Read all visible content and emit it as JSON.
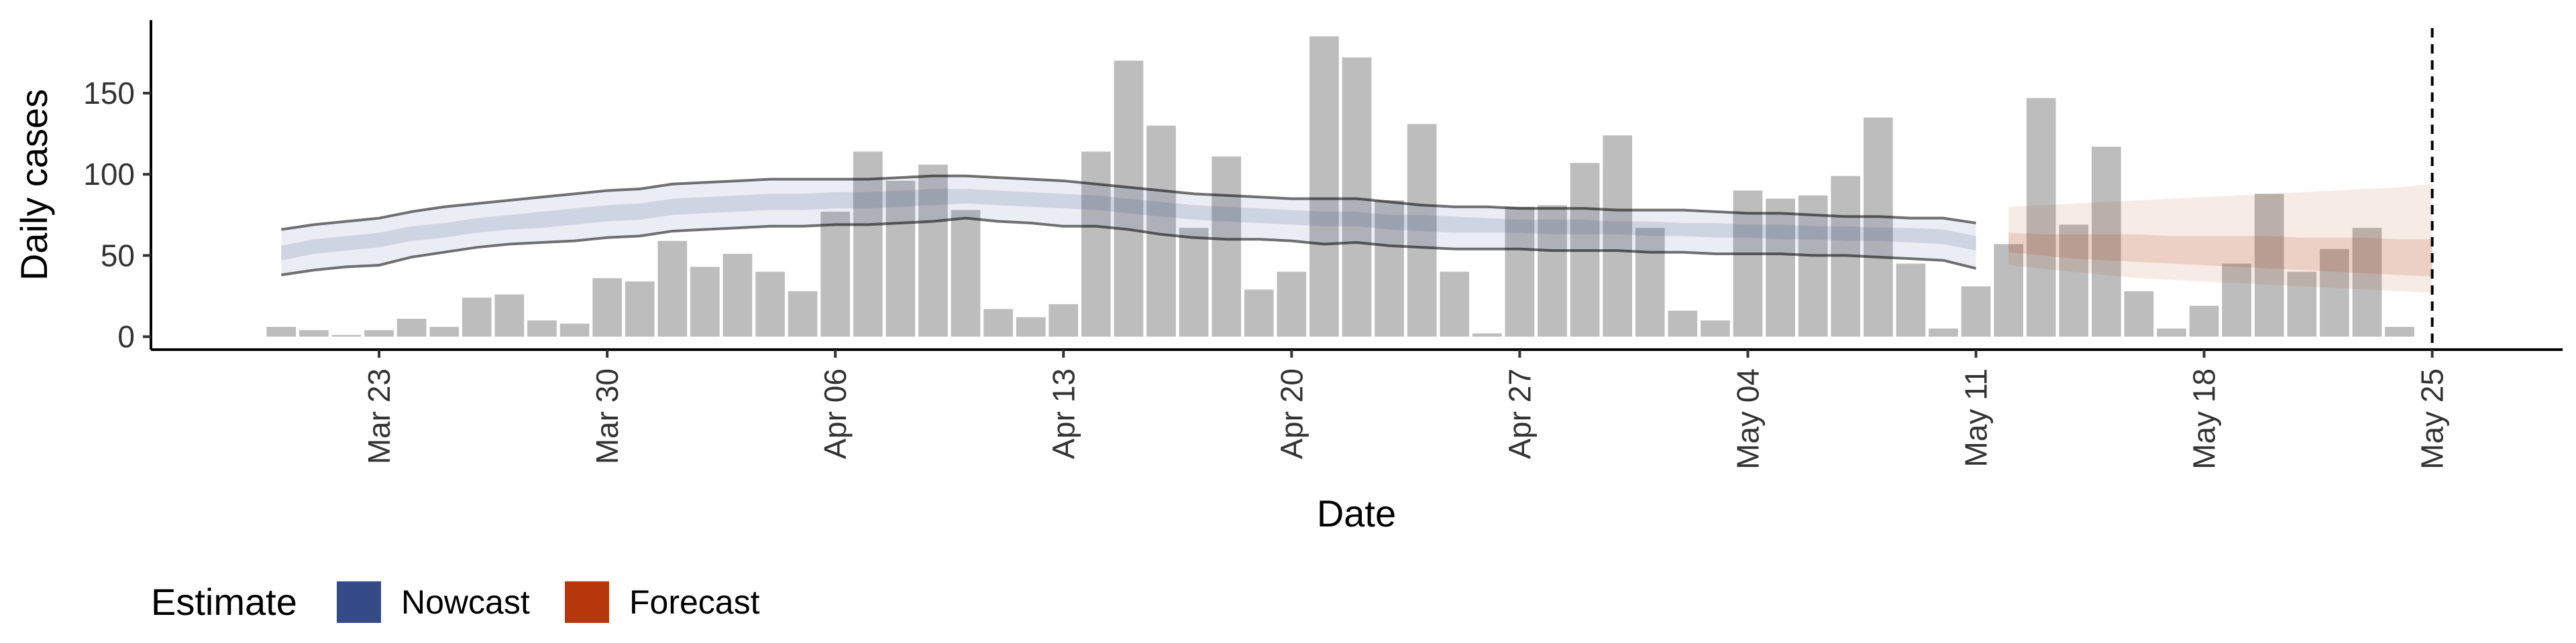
{
  "chart_data": {
    "type": "bar",
    "xlabel": "Date",
    "ylabel": "Daily cases",
    "ylim": [
      -8,
      195
    ],
    "y_ticks": [
      0,
      50,
      100,
      150
    ],
    "x_ticks": [
      "2020-03-23",
      "2020-03-30",
      "2020-04-06",
      "2020-04-13",
      "2020-04-20",
      "2020-04-27",
      "2020-05-04",
      "2020-05-11",
      "2020-05-18",
      "2020-05-25"
    ],
    "x_tick_labels": [
      "Mar 23",
      "Mar 30",
      "Apr 06",
      "Apr 13",
      "Apr 20",
      "Apr 27",
      "May 04",
      "May 11",
      "May 18",
      "May 25"
    ],
    "xlim": [
      "2020-03-16",
      "2020-05-29"
    ],
    "vline_date": "2020-05-25",
    "grid": false,
    "legend": {
      "title": "Estimate",
      "position": "bottom-left",
      "entries": [
        {
          "name": "Nowcast",
          "color": "#344b88"
        },
        {
          "name": "Forecast",
          "color": "#b5370b"
        }
      ]
    },
    "bar_color": "#bdbdbd",
    "cases": {
      "dates": [
        "2020-03-20",
        "2020-03-21",
        "2020-03-22",
        "2020-03-23",
        "2020-03-24",
        "2020-03-25",
        "2020-03-26",
        "2020-03-27",
        "2020-03-28",
        "2020-03-29",
        "2020-03-30",
        "2020-03-31",
        "2020-04-01",
        "2020-04-02",
        "2020-04-03",
        "2020-04-04",
        "2020-04-05",
        "2020-04-06",
        "2020-04-07",
        "2020-04-08",
        "2020-04-09",
        "2020-04-10",
        "2020-04-11",
        "2020-04-12",
        "2020-04-13",
        "2020-04-14",
        "2020-04-15",
        "2020-04-16",
        "2020-04-17",
        "2020-04-18",
        "2020-04-19",
        "2020-04-20",
        "2020-04-21",
        "2020-04-22",
        "2020-04-23",
        "2020-04-24",
        "2020-04-25",
        "2020-04-26",
        "2020-04-27",
        "2020-04-28",
        "2020-04-29",
        "2020-04-30",
        "2020-05-01",
        "2020-05-02",
        "2020-05-03",
        "2020-05-04",
        "2020-05-05",
        "2020-05-06",
        "2020-05-07",
        "2020-05-08",
        "2020-05-09",
        "2020-05-10",
        "2020-05-11",
        "2020-05-12",
        "2020-05-13",
        "2020-05-14",
        "2020-05-15",
        "2020-05-16",
        "2020-05-17",
        "2020-05-18",
        "2020-05-19",
        "2020-05-20",
        "2020-05-21",
        "2020-05-22",
        "2020-05-23",
        "2020-05-24",
        "2020-05-25"
      ],
      "values": [
        6,
        4,
        1,
        4,
        11,
        6,
        24,
        26,
        10,
        8,
        36,
        34,
        59,
        43,
        51,
        40,
        28,
        77,
        114,
        96,
        106,
        78,
        17,
        12,
        20,
        114,
        170,
        130,
        67,
        111,
        29,
        40,
        185,
        172,
        84,
        131,
        40,
        2,
        80,
        81,
        107,
        124,
        67,
        16,
        10,
        90,
        85,
        87,
        99,
        135,
        45,
        5,
        31,
        57,
        147,
        69,
        117,
        28,
        5,
        19,
        45,
        88,
        40,
        54,
        67,
        6,
        0
      ]
    },
    "nowcast": {
      "dates": [
        "2020-03-20",
        "2020-03-21",
        "2020-03-22",
        "2020-03-23",
        "2020-03-24",
        "2020-03-25",
        "2020-03-26",
        "2020-03-27",
        "2020-03-28",
        "2020-03-29",
        "2020-03-30",
        "2020-03-31",
        "2020-04-01",
        "2020-04-02",
        "2020-04-03",
        "2020-04-04",
        "2020-04-05",
        "2020-04-06",
        "2020-04-07",
        "2020-04-08",
        "2020-04-09",
        "2020-04-10",
        "2020-04-11",
        "2020-04-12",
        "2020-04-13",
        "2020-04-14",
        "2020-04-15",
        "2020-04-16",
        "2020-04-17",
        "2020-04-18",
        "2020-04-19",
        "2020-04-20",
        "2020-04-21",
        "2020-04-22",
        "2020-04-23",
        "2020-04-24",
        "2020-04-25",
        "2020-04-26",
        "2020-04-27",
        "2020-04-28",
        "2020-04-29",
        "2020-04-30",
        "2020-05-01",
        "2020-05-02",
        "2020-05-03",
        "2020-05-04",
        "2020-05-05",
        "2020-05-06",
        "2020-05-07",
        "2020-05-08",
        "2020-05-09",
        "2020-05-10",
        "2020-05-11"
      ],
      "lower90": [
        38,
        41,
        43,
        44,
        49,
        52,
        55,
        57,
        58,
        59,
        61,
        62,
        65,
        66,
        67,
        68,
        68,
        69,
        69,
        70,
        71,
        73,
        71,
        70,
        68,
        68,
        66,
        63,
        61,
        60,
        60,
        59,
        57,
        58,
        56,
        55,
        54,
        54,
        54,
        53,
        53,
        53,
        52,
        52,
        51,
        51,
        51,
        50,
        50,
        49,
        48,
        47,
        42
      ],
      "lower50": [
        47,
        51,
        53,
        55,
        59,
        61,
        64,
        66,
        67,
        69,
        71,
        72,
        75,
        76,
        77,
        78,
        78,
        79,
        79,
        80,
        81,
        82,
        81,
        80,
        79,
        78,
        76,
        74,
        72,
        71,
        70,
        69,
        68,
        68,
        66,
        65,
        64,
        64,
        64,
        63,
        63,
        63,
        62,
        62,
        61,
        61,
        60,
        60,
        59,
        59,
        58,
        57,
        53
      ],
      "median": [
        51,
        55,
        57,
        59,
        63,
        65,
        68,
        70,
        72,
        74,
        76,
        77,
        80,
        81,
        82,
        83,
        83,
        84,
        84,
        85,
        86,
        86,
        85,
        84,
        83,
        82,
        80,
        78,
        76,
        75,
        74,
        73,
        72,
        72,
        70,
        70,
        69,
        68,
        68,
        67,
        67,
        67,
        66,
        66,
        65,
        65,
        64,
        64,
        63,
        63,
        62,
        61,
        57
      ],
      "upper50": [
        56,
        60,
        62,
        64,
        68,
        70,
        73,
        75,
        77,
        79,
        81,
        82,
        85,
        86,
        87,
        88,
        88,
        89,
        89,
        90,
        91,
        91,
        90,
        89,
        88,
        87,
        85,
        83,
        81,
        80,
        79,
        78,
        77,
        77,
        75,
        75,
        74,
        73,
        72,
        72,
        72,
        71,
        71,
        70,
        70,
        69,
        69,
        68,
        68,
        67,
        67,
        66,
        62
      ],
      "upper90": [
        66,
        69,
        71,
        73,
        77,
        80,
        82,
        84,
        86,
        88,
        90,
        91,
        94,
        95,
        96,
        97,
        97,
        97,
        97,
        98,
        99,
        99,
        98,
        97,
        96,
        94,
        92,
        90,
        88,
        87,
        86,
        85,
        85,
        85,
        83,
        81,
        80,
        80,
        79,
        79,
        79,
        78,
        78,
        78,
        77,
        76,
        76,
        75,
        74,
        74,
        73,
        73,
        70
      ]
    },
    "forecast": {
      "dates": [
        "2020-05-12",
        "2020-05-13",
        "2020-05-14",
        "2020-05-15",
        "2020-05-16",
        "2020-05-17",
        "2020-05-18",
        "2020-05-19",
        "2020-05-20",
        "2020-05-21",
        "2020-05-22",
        "2020-05-23",
        "2020-05-24",
        "2020-05-25"
      ],
      "lower90": [
        44,
        42,
        40,
        38,
        36,
        35,
        34,
        33,
        32,
        31,
        30,
        29,
        28,
        27
      ],
      "lower50": [
        52,
        50,
        48,
        47,
        46,
        45,
        44,
        43,
        42,
        41,
        40,
        39,
        38,
        37
      ],
      "median": [
        58,
        57,
        56,
        55,
        54,
        53,
        52,
        51,
        50,
        49,
        48,
        47,
        46,
        45
      ],
      "upper50": [
        64,
        63,
        63,
        63,
        63,
        62,
        62,
        62,
        62,
        61,
        61,
        61,
        60,
        60
      ],
      "upper90": [
        80,
        81,
        82,
        83,
        84,
        85,
        86,
        87,
        88,
        89,
        90,
        91,
        92,
        94
      ]
    }
  }
}
